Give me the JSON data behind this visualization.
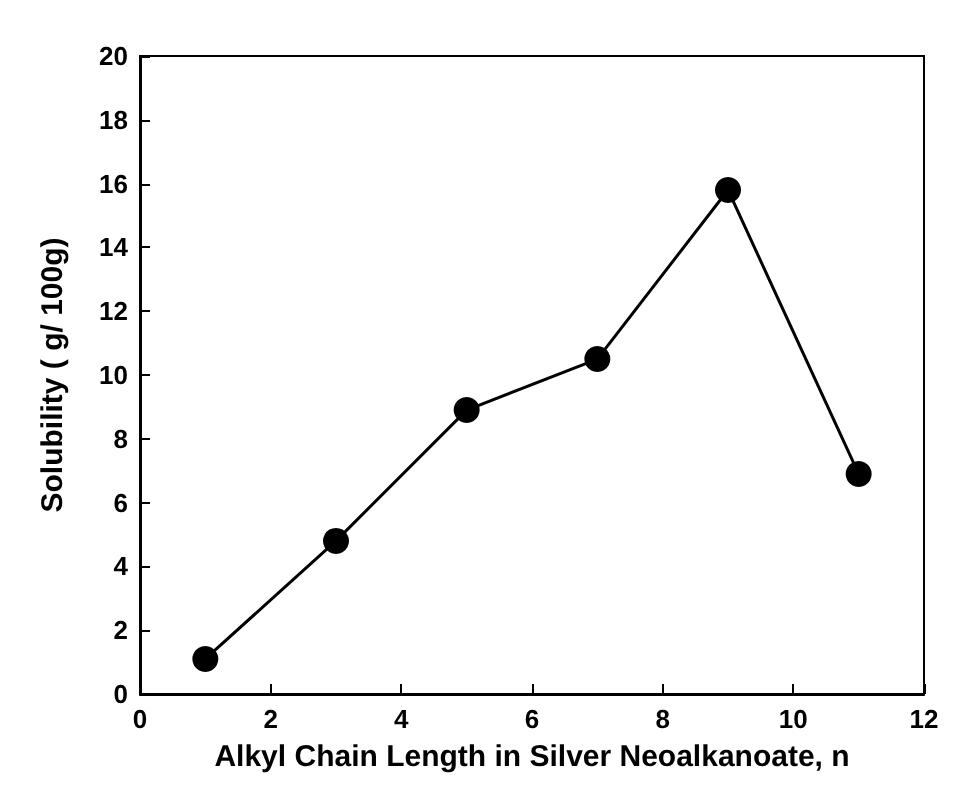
{
  "chart_data": {
    "type": "line",
    "xlabel": "Alkyl Chain Length in Silver Neoalkanoate, n",
    "ylabel": "Solubility ( g/ 100g)",
    "x": [
      1,
      3,
      5,
      7,
      9,
      11
    ],
    "series": [
      {
        "color": "#000000",
        "values": [
          1.1,
          4.8,
          8.9,
          10.5,
          15.8,
          6.9
        ]
      }
    ],
    "xlim": [
      0,
      12
    ],
    "xticks": [
      0,
      2,
      4,
      6,
      8,
      10,
      12
    ],
    "ylim": [
      0,
      20
    ],
    "yticks": [
      0,
      2,
      4,
      6,
      8,
      10,
      12,
      14,
      16,
      18,
      20
    ],
    "grid": false,
    "marker": "circle",
    "line_style": "solid"
  }
}
